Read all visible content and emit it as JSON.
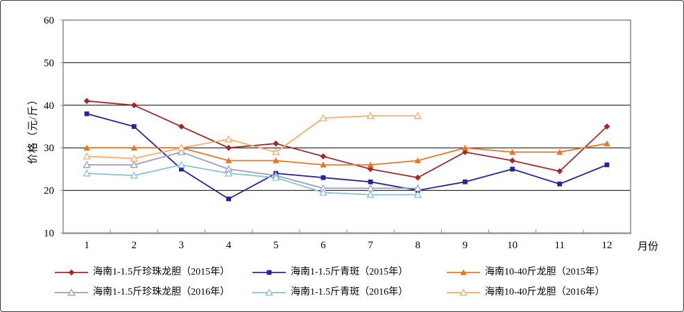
{
  "chart_data": {
    "type": "line",
    "x": [
      1,
      2,
      3,
      4,
      5,
      6,
      7,
      8,
      9,
      10,
      11,
      12
    ],
    "xlabel": "月份",
    "ylabel": "价格（元/斤）",
    "ylim": [
      10,
      60
    ],
    "ytick_interval": 10,
    "yticks": [
      10,
      20,
      30,
      40,
      50,
      60
    ],
    "grid": true,
    "legend_position": "bottom",
    "colors": {
      "grid": "#000000",
      "plot_border": "#808080",
      "axis": "#8a8a8a",
      "text": "#000000"
    },
    "series": [
      {
        "name": "海南1-1.5斤珍珠龙胆（2015年）",
        "color": "#A52828",
        "marker": "diamond",
        "values": [
          41,
          40,
          35,
          30,
          31,
          28,
          25,
          23,
          29,
          27,
          24.5,
          35
        ]
      },
      {
        "name": "海南1-1.5斤青斑（2015年）",
        "color": "#2323A0",
        "marker": "square",
        "values": [
          38,
          35,
          25,
          18,
          24,
          23,
          22,
          20,
          22,
          25,
          21.5,
          26
        ]
      },
      {
        "name": "海南10-40斤龙胆（2015年）",
        "color": "#EE7422",
        "marker": "triangle",
        "values": [
          30,
          30,
          30,
          27,
          27,
          26,
          26,
          27,
          30,
          29,
          29,
          31
        ]
      },
      {
        "name": "海南1-1.5斤珍珠龙胆（2016年）",
        "color": "#9A9ACB",
        "marker": "open-triangle",
        "values": [
          26,
          26,
          29,
          25,
          23.5,
          20.5,
          20.5,
          20.5,
          null,
          null,
          null,
          null
        ]
      },
      {
        "name": "海南1-1.5斤青斑（2016年）",
        "color": "#85C3D7",
        "marker": "open-triangle",
        "values": [
          24,
          23.5,
          26,
          24,
          23,
          19.5,
          19,
          19,
          null,
          null,
          null,
          null
        ]
      },
      {
        "name": "海南10-40斤龙胆（2016年）",
        "color": "#F9AC67",
        "marker": "open-triangle",
        "values": [
          28,
          27.5,
          30,
          32,
          29,
          37,
          37.5,
          37.5,
          null,
          null,
          null,
          null
        ]
      }
    ],
    "legend_rows": [
      [
        0,
        1,
        2
      ],
      [
        3,
        4,
        5
      ]
    ]
  }
}
